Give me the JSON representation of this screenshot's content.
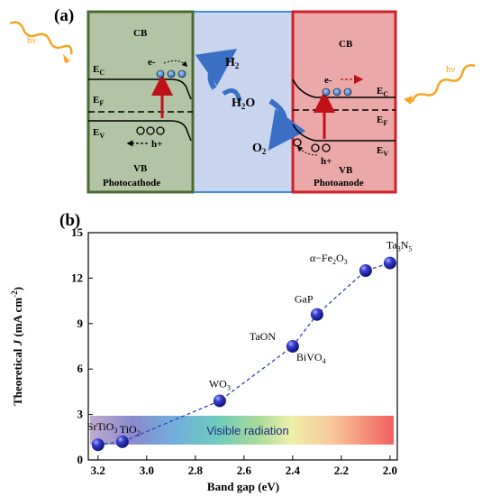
{
  "panel_a": {
    "label": "(a)",
    "light": "hν",
    "photocathode": {
      "cb": "CB",
      "ec": "E",
      "ec_sub": "C",
      "ef": "E",
      "ef_sub": "F",
      "ev": "E",
      "ev_sub": "V",
      "electron": "e-",
      "hole": "h+",
      "vb": "VB",
      "name": "Photocathode"
    },
    "photoanode": {
      "cb": "CB",
      "ec": "E",
      "ec_sub": "C",
      "ef": "E",
      "ef_sub": "F",
      "ev": "E",
      "ev_sub": "V",
      "electron": "e-",
      "hole": "h+",
      "vb": "VB",
      "name": "Photoanode"
    },
    "electrolyte": {
      "h2": "H",
      "h2_sub": "2",
      "h2o": "H",
      "h2o_sub": "2",
      "h2o_tail": "O",
      "o2": "O",
      "o2_sub": "2"
    },
    "colors": {
      "cathode_fill": "#b3c3a5",
      "cathode_border": "#4a6b32",
      "electrolyte_fill": "#c9d5ef",
      "electrolyte_border": "#3d8fe0",
      "anode_fill": "#eba8a8",
      "anode_border": "#d1202a",
      "arrow_red": "#c0101a",
      "arrow_blue": "#3a6fc4",
      "light_orange": "#f5a623"
    }
  },
  "panel_b": {
    "label": "(b)",
    "radiation_label": "Visible radiation"
  },
  "chart_data": {
    "type": "scatter",
    "xlabel": "Band gap (eV)",
    "ylabel": "Theoretical J (mA cm-2)",
    "ylabel_parts": {
      "a": "Theoretical ",
      "b": "J",
      "c": " (mA cm",
      "d": "-2",
      "e": ")"
    },
    "xlim": [
      3.24,
      1.97
    ],
    "ylim": [
      0,
      15
    ],
    "x_reversed": true,
    "xticks": [
      3.2,
      3.0,
      2.8,
      2.6,
      2.4,
      2.2,
      2.0
    ],
    "xtick_labels": [
      "3.2",
      "3.0",
      "2.8",
      "2.6",
      "2.4",
      "2.2",
      "2.0"
    ],
    "yticks": [
      0,
      3,
      6,
      9,
      12,
      15
    ],
    "ytick_labels": [
      "0",
      "3",
      "6",
      "9",
      "12",
      "15"
    ],
    "points": [
      {
        "material": "SrTiO3",
        "label_main": "SrTiO",
        "label_sub": "3",
        "x": 3.2,
        "y": 1.0
      },
      {
        "material": "TiO2",
        "label_main": "TiO",
        "label_sub": "2",
        "x": 3.1,
        "y": 1.2
      },
      {
        "material": "WO3",
        "label_main": "WO",
        "label_sub": "3",
        "x": 2.7,
        "y": 3.9
      },
      {
        "material": "TaON",
        "label_main": "TaON",
        "label_sub": "",
        "x": 2.4,
        "y": 7.5
      },
      {
        "material": "BiVO4",
        "label_main": "BiVO",
        "label_sub": "4",
        "x": 2.4,
        "y": 7.5
      },
      {
        "material": "GaP",
        "label_main": "GaP",
        "label_sub": "",
        "x": 2.3,
        "y": 9.6
      },
      {
        "material": "α-Fe2O3",
        "label_main": "α−Fe",
        "label_sub": "2",
        "label_tail": "O",
        "label_sub2": "3",
        "x": 2.1,
        "y": 12.5
      },
      {
        "material": "Ta3N5",
        "label_main": "Ta",
        "label_sub": "3",
        "label_tail": "N",
        "label_sub2": "5",
        "x": 2.0,
        "y": 13.0
      }
    ],
    "grid": false,
    "line_style": "dashed",
    "marker_color": "#1c1fa8",
    "line_color": "#3040c0"
  }
}
